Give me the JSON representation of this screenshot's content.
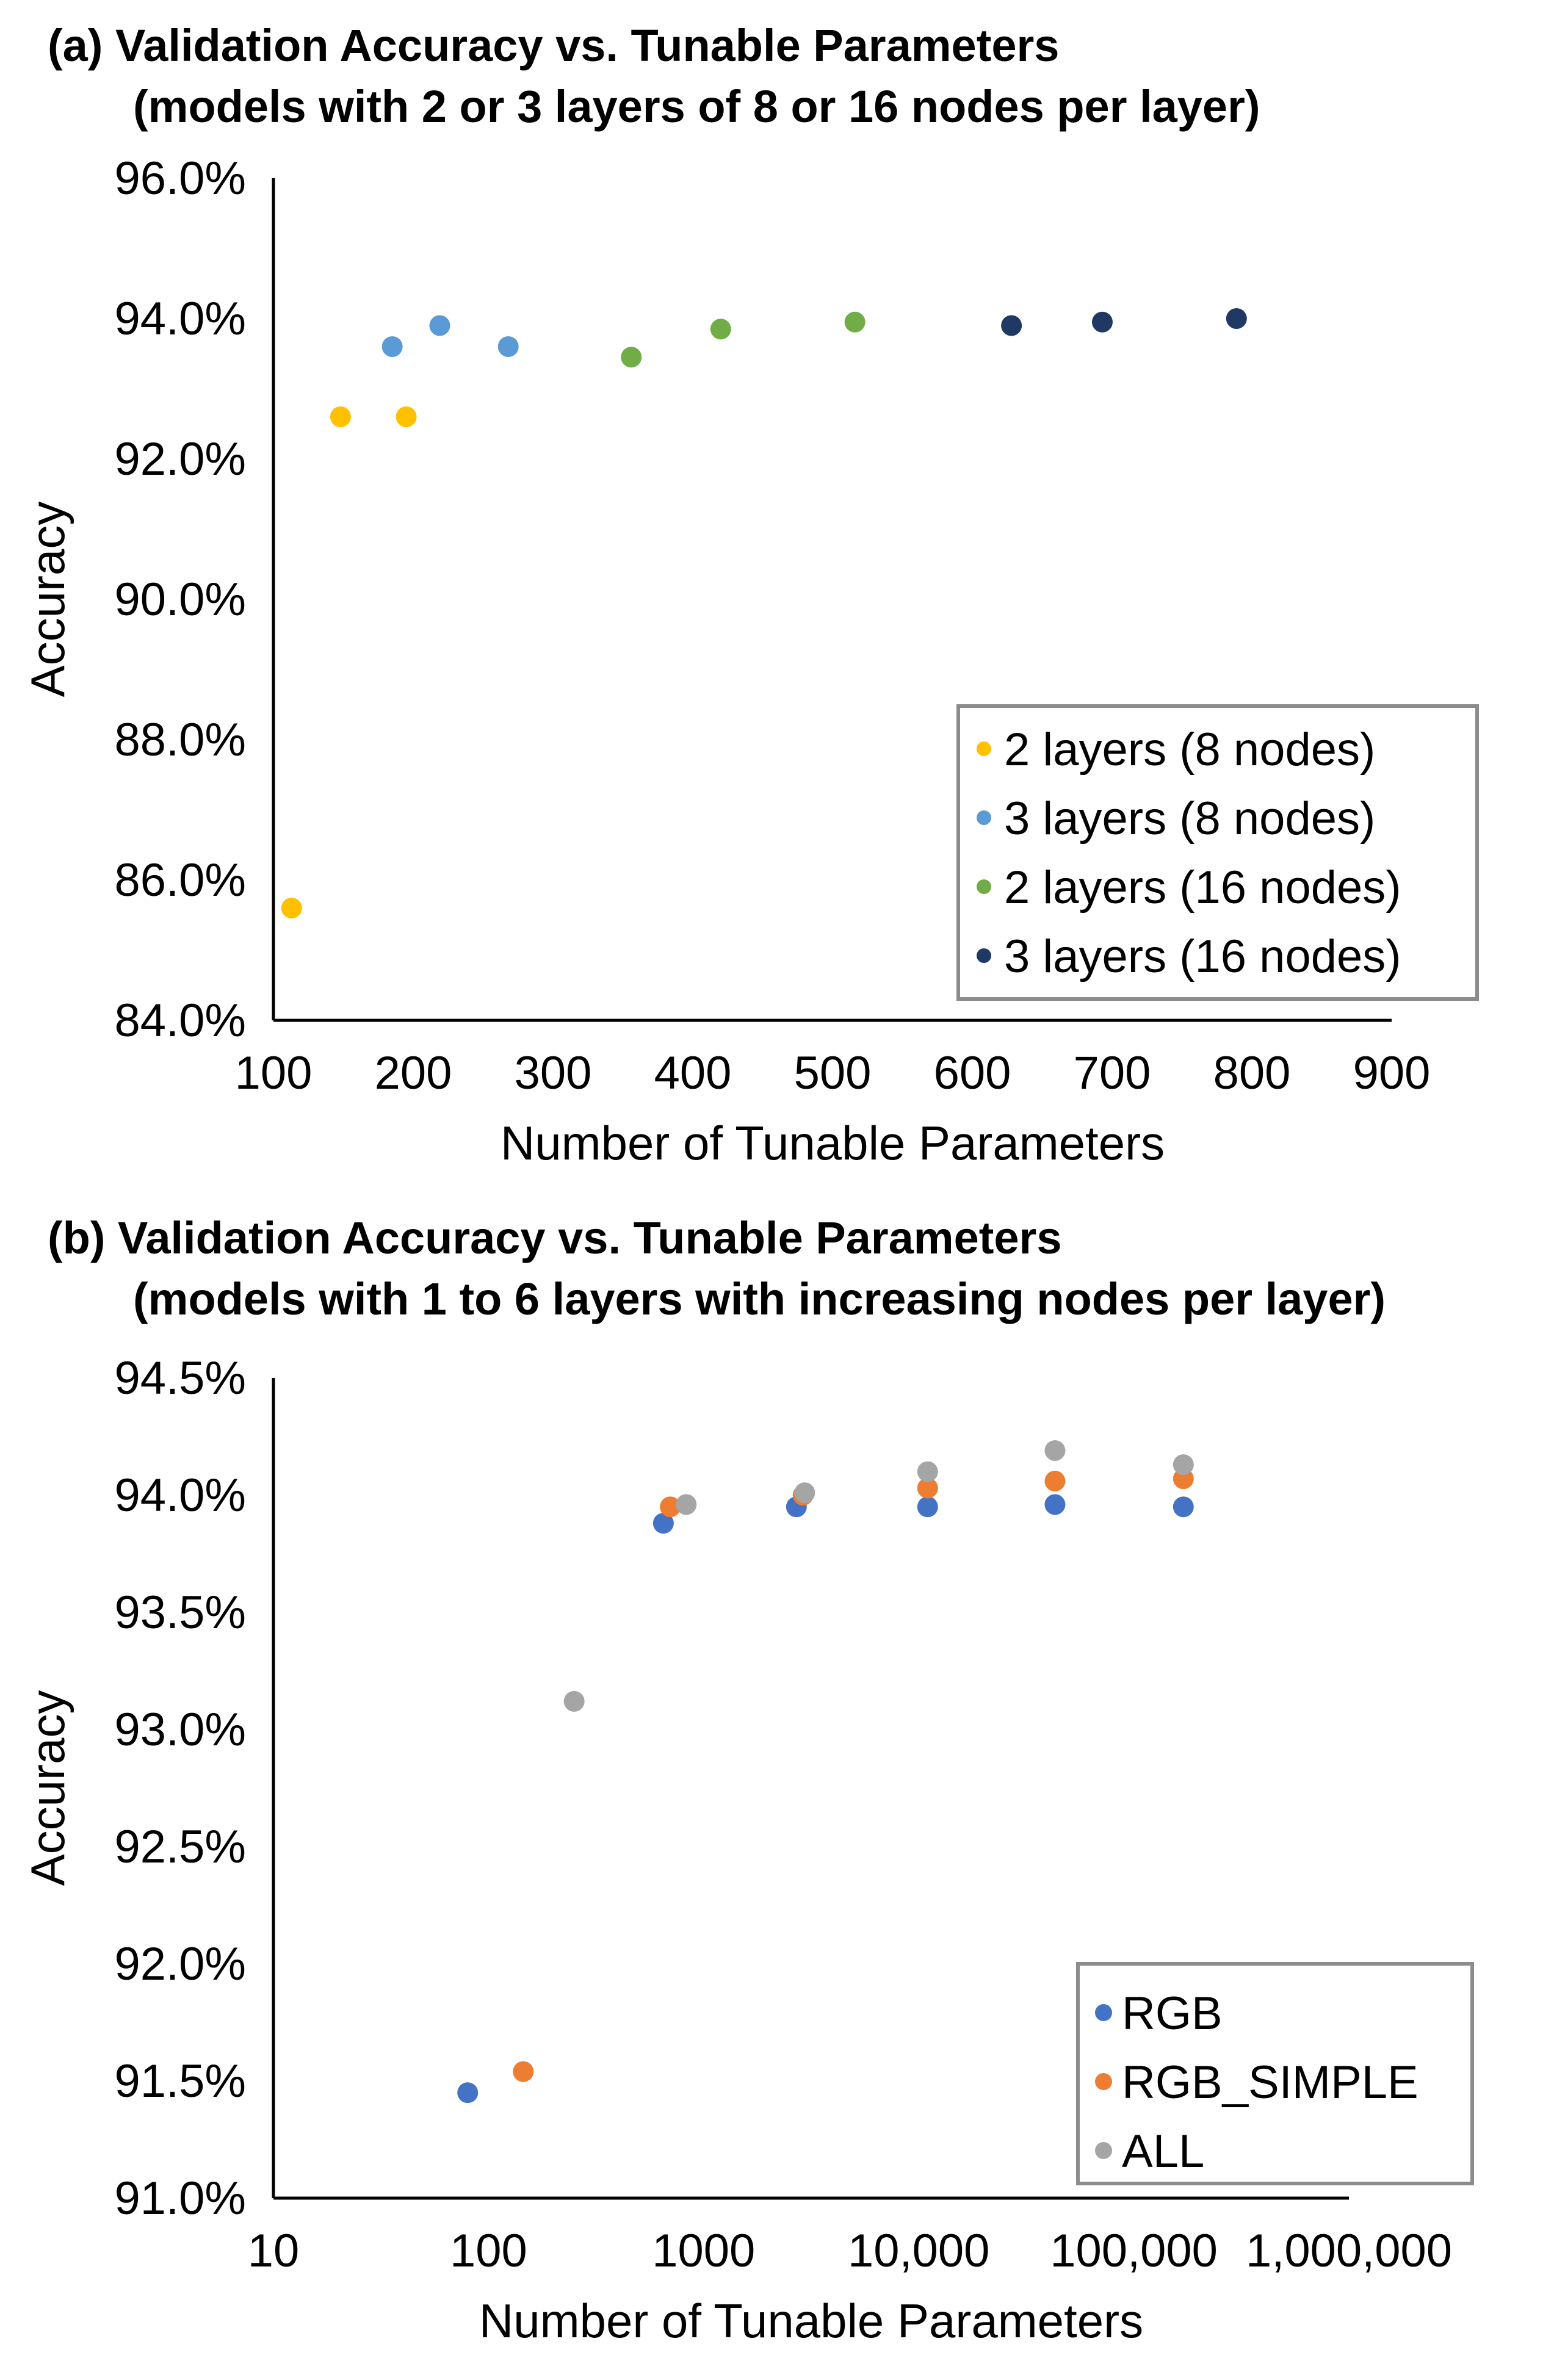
{
  "chart_data": [
    {
      "type": "scatter",
      "title": "(a) Validation Accuracy vs. Tunable Parameters",
      "subtitle": "(models with 2 or 3 layers of 8 or 16 nodes per layer)",
      "xlabel": "Number of Tunable Parameters",
      "ylabel": "Accuracy",
      "xscale": "linear",
      "xlim": [
        100,
        900
      ],
      "ylim": [
        84.0,
        96.0
      ],
      "xticks": [
        100,
        200,
        300,
        400,
        500,
        600,
        700,
        800,
        900
      ],
      "xtick_labels": [
        "100",
        "200",
        "300",
        "400",
        "500",
        "600",
        "700",
        "800",
        "900"
      ],
      "yticks": [
        84,
        86,
        88,
        90,
        92,
        94,
        96
      ],
      "ytick_labels": [
        "84.0%",
        "86.0%",
        "88.0%",
        "90.0%",
        "92.0%",
        "94.0%",
        "96.0%"
      ],
      "grid": false,
      "legend_position": "bottom-right",
      "series": [
        {
          "name": "2 layers (8 nodes)",
          "color": "#FFC000",
          "x": [
            113,
            148,
            195
          ],
          "y": [
            85.6,
            92.6,
            92.6
          ]
        },
        {
          "name": "3 layers (8 nodes)",
          "color": "#5B9BD5",
          "x": [
            185,
            219,
            268
          ],
          "y": [
            93.6,
            93.9,
            93.6
          ]
        },
        {
          "name": "2 layers (16 nodes)",
          "color": "#70AD47",
          "x": [
            356,
            420,
            516
          ],
          "y": [
            93.45,
            93.85,
            93.95
          ]
        },
        {
          "name": "3 layers (16 nodes)",
          "color": "#203864",
          "x": [
            628,
            693,
            789
          ],
          "y": [
            93.9,
            93.95,
            94.0
          ]
        }
      ]
    },
    {
      "type": "scatter",
      "title": "(b) Validation Accuracy vs. Tunable Parameters",
      "subtitle": "(models with 1 to 6 layers with increasing nodes per layer)",
      "xlabel": "Number of Tunable Parameters",
      "ylabel": "Accuracy",
      "xscale": "log",
      "xlim": [
        10,
        1000000
      ],
      "ylim": [
        91.0,
        94.5
      ],
      "xticks": [
        10,
        100,
        1000,
        10000,
        100000,
        1000000
      ],
      "xtick_labels": [
        "10",
        "100",
        "1000",
        "10,000",
        "100,000",
        "1,000,000"
      ],
      "yticks": [
        91.0,
        91.5,
        92.0,
        92.5,
        93.0,
        93.5,
        94.0,
        94.5
      ],
      "ytick_labels": [
        "91.0%",
        "91.5%",
        "92.0%",
        "92.5%",
        "93.0%",
        "93.5%",
        "94.0%",
        "94.5%"
      ],
      "grid": false,
      "legend_position": "bottom-right",
      "series": [
        {
          "name": "RGB",
          "color": "#4472C4",
          "x": [
            80,
            650,
            2700,
            11000,
            43000,
            170000
          ],
          "y": [
            91.45,
            93.88,
            93.95,
            93.95,
            93.96,
            93.95
          ]
        },
        {
          "name": "RGB_SIMPLE",
          "color": "#ED7D31",
          "x": [
            145,
            700,
            2900,
            11000,
            43000,
            170000
          ],
          "y": [
            91.54,
            93.95,
            94.0,
            94.03,
            94.06,
            94.07
          ]
        },
        {
          "name": "ALL",
          "color": "#A5A5A5",
          "x": [
            250,
            830,
            2950,
            11000,
            43000,
            170000
          ],
          "y": [
            93.12,
            93.96,
            94.01,
            94.1,
            94.19,
            94.13
          ]
        }
      ]
    }
  ]
}
